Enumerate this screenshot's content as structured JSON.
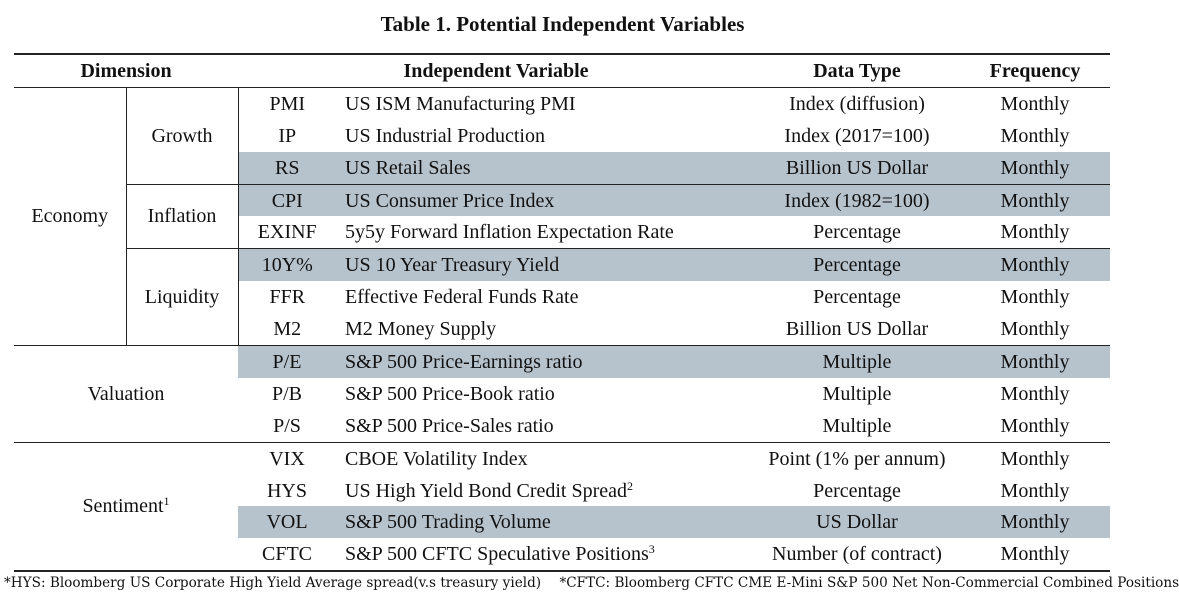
{
  "title": "Table 1. Potential Independent Variables",
  "headers": {
    "dimension": "Dimension",
    "variable": "Independent Variable",
    "data_type": "Data Type",
    "frequency": "Frequency"
  },
  "groups": {
    "economy": "Economy",
    "growth": "Growth",
    "inflation": "Inflation",
    "liquidity": "Liquidity",
    "valuation": "Valuation",
    "sentiment": "Sentiment",
    "sentiment_sup": "1"
  },
  "rows": [
    {
      "abbr": "PMI",
      "variable": "US ISM Manufacturing PMI",
      "type": "Index (diffusion)",
      "freq": "Monthly"
    },
    {
      "abbr": "IP",
      "variable": "US Industrial Production",
      "type": "Index (2017=100)",
      "freq": "Monthly"
    },
    {
      "abbr": "RS",
      "variable": "US Retail Sales",
      "type": "Billion US Dollar",
      "freq": "Monthly"
    },
    {
      "abbr": "CPI",
      "variable": "US Consumer Price Index",
      "type": "Index (1982=100)",
      "freq": "Monthly"
    },
    {
      "abbr": "EXINF",
      "variable": "5y5y Forward Inflation Expectation Rate",
      "type": "Percentage",
      "freq": "Monthly"
    },
    {
      "abbr": "10Y%",
      "variable": "US 10 Year Treasury Yield",
      "type": "Percentage",
      "freq": "Monthly"
    },
    {
      "abbr": "FFR",
      "variable": "Effective Federal Funds Rate",
      "type": "Percentage",
      "freq": "Monthly"
    },
    {
      "abbr": "M2",
      "variable": "M2 Money Supply",
      "type": "Billion US Dollar",
      "freq": "Monthly"
    },
    {
      "abbr": "P/E",
      "variable": "S&P 500 Price-Earnings ratio",
      "type": "Multiple",
      "freq": "Monthly"
    },
    {
      "abbr": "P/B",
      "variable": "S&P 500 Price-Book ratio",
      "type": "Multiple",
      "freq": "Monthly"
    },
    {
      "abbr": "P/S",
      "variable": "S&P 500 Price-Sales ratio",
      "type": "Multiple",
      "freq": "Monthly"
    },
    {
      "abbr": "VIX",
      "variable": "CBOE Volatility Index",
      "type": "Point (1% per annum)",
      "freq": "Monthly"
    },
    {
      "abbr": "HYS",
      "variable": "US High Yield Bond Credit Spread",
      "var_sup": "2",
      "type": "Percentage",
      "freq": "Monthly"
    },
    {
      "abbr": "VOL",
      "variable": "S&P 500 Trading Volume",
      "type": "US Dollar",
      "freq": "Monthly"
    },
    {
      "abbr": "CFTC",
      "variable": "S&P 500 CFTC Speculative Positions",
      "var_sup": "3",
      "type": "Number (of contract)",
      "freq": "Monthly"
    }
  ],
  "notes": {
    "hys": "*HYS: Bloomberg US Corporate High Yield Average spread(v.s treasury yield)",
    "cftc": "*CFTC: Bloomberg CFTC CME E-Mini S&P 500 Net Non-Commercial Combined Positions"
  },
  "colors": {
    "shade": "#b6c3cd"
  }
}
